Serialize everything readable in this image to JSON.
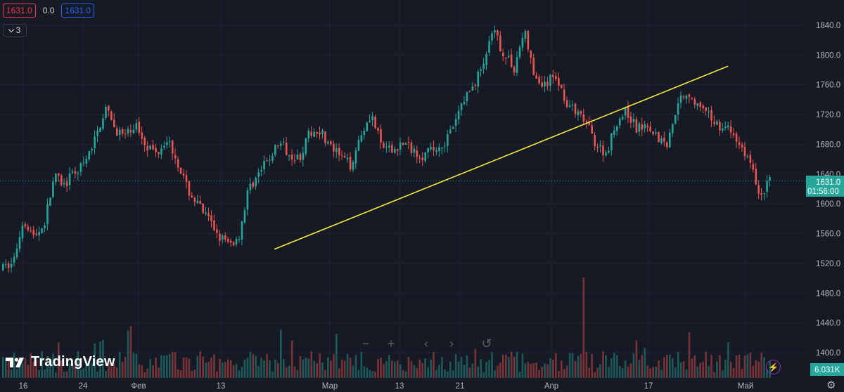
{
  "legend": {
    "open_value": "1631.0",
    "change": "0.0",
    "close_value": "1631.0",
    "collapsed_count": "3"
  },
  "branding": {
    "logo_text": "TradingView"
  },
  "nav": {
    "zoom_out": "−",
    "zoom_in": "+",
    "scroll_left": "‹",
    "scroll_right": "›",
    "reset": "↺"
  },
  "colors": {
    "up": "#26a69a",
    "down": "#ef5350",
    "trendline": "#f7e73c",
    "background": "#161a25",
    "grid": "#1f2431"
  },
  "chart_data": {
    "type": "candlestick",
    "y_axis": {
      "ylim": [
        1370,
        1860
      ],
      "ticks": [
        1400,
        1440,
        1480,
        1520,
        1560,
        1600,
        1640,
        1680,
        1720,
        1760,
        1800,
        1840
      ],
      "position": "right"
    },
    "x_axis": {
      "ticks": [
        "16",
        "24",
        "Фев",
        "13",
        "Мар",
        "13",
        "21",
        "Апр",
        "17",
        "Май"
      ]
    },
    "last_price": {
      "value": "1631.0",
      "countdown": "01:56:00"
    },
    "volume_label": "6.031K",
    "trendline": {
      "from": {
        "price": 1539
      },
      "to": {
        "price": 1785
      }
    },
    "anchors": [
      1513,
      1521,
      1580,
      1556,
      1571,
      1637,
      1625,
      1642,
      1653,
      1687,
      1728,
      1700,
      1690,
      1707,
      1680,
      1668,
      1689,
      1660,
      1620,
      1600,
      1580,
      1560,
      1545,
      1552,
      1620,
      1640,
      1660,
      1683,
      1668,
      1662,
      1695,
      1700,
      1676,
      1663,
      1652,
      1694,
      1722,
      1678,
      1670,
      1682,
      1674,
      1665,
      1672,
      1680,
      1700,
      1740,
      1758,
      1790,
      1832,
      1800,
      1783,
      1834,
      1767,
      1758,
      1775,
      1740,
      1722,
      1710,
      1680,
      1668,
      1710,
      1725,
      1700,
      1710,
      1690,
      1680,
      1740,
      1750,
      1730,
      1718,
      1706,
      1700,
      1680,
      1660,
      1610,
      1631
    ],
    "volume_spikes": {
      "peak_value": 6.031,
      "peak_unit": "K"
    }
  }
}
